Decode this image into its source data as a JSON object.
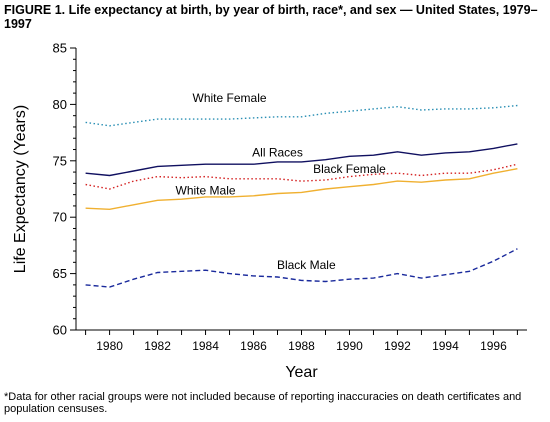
{
  "chart_data": {
    "type": "line",
    "title": "FIGURE 1. Life expectancy at birth, by year of birth, race*, and sex — United States, 1979–1997",
    "xlabel": "Year",
    "ylabel": "Life Expectancy (Years)",
    "xlim": [
      1979,
      1997
    ],
    "ylim": [
      60,
      85
    ],
    "x_ticks": [
      1980,
      1982,
      1984,
      1986,
      1988,
      1990,
      1992,
      1994,
      1996
    ],
    "y_ticks": [
      60,
      65,
      70,
      75,
      80,
      85
    ],
    "grid": false,
    "legend": "inline labels",
    "x": [
      1979,
      1980,
      1981,
      1982,
      1983,
      1984,
      1985,
      1986,
      1987,
      1988,
      1989,
      1990,
      1991,
      1992,
      1993,
      1994,
      1995,
      1996,
      1997
    ],
    "series": [
      {
        "name": "White Female",
        "color": "#2a8fb4",
        "dash": "1.5 2.5",
        "values": [
          78.4,
          78.1,
          78.4,
          78.7,
          78.7,
          78.7,
          78.7,
          78.8,
          78.9,
          78.9,
          79.2,
          79.4,
          79.6,
          79.8,
          79.5,
          79.6,
          79.6,
          79.7,
          79.9
        ]
      },
      {
        "name": "All Races",
        "color": "#101060",
        "dash": "",
        "values": [
          73.9,
          73.7,
          74.1,
          74.5,
          74.6,
          74.7,
          74.7,
          74.7,
          74.9,
          74.9,
          75.1,
          75.4,
          75.5,
          75.8,
          75.5,
          75.7,
          75.8,
          76.1,
          76.5
        ]
      },
      {
        "name": "Black Female",
        "color": "#d42020",
        "dash": "1.5 2.5",
        "values": [
          72.9,
          72.5,
          73.2,
          73.6,
          73.5,
          73.6,
          73.4,
          73.4,
          73.4,
          73.2,
          73.3,
          73.6,
          73.8,
          73.9,
          73.7,
          73.9,
          73.9,
          74.2,
          74.7
        ]
      },
      {
        "name": "White Male",
        "color": "#f0b030",
        "dash": "",
        "values": [
          70.8,
          70.7,
          71.1,
          71.5,
          71.6,
          71.8,
          71.8,
          71.9,
          72.1,
          72.2,
          72.5,
          72.7,
          72.9,
          73.2,
          73.1,
          73.3,
          73.4,
          73.9,
          74.3
        ]
      },
      {
        "name": "Black Male",
        "color": "#1a2a9c",
        "dash": "5 3",
        "values": [
          64.0,
          63.8,
          64.5,
          65.1,
          65.2,
          65.3,
          65.0,
          64.8,
          64.7,
          64.4,
          64.3,
          64.5,
          64.6,
          65.0,
          64.6,
          64.9,
          65.2,
          66.1,
          67.2
        ]
      }
    ],
    "labels": [
      {
        "series": "White Female",
        "text": "White Female",
        "x": 1985.0,
        "y": 80.2
      },
      {
        "series": "All Races",
        "text": "All Races",
        "x": 1987.0,
        "y": 75.4
      },
      {
        "series": "Black Female",
        "text": "Black Female",
        "x": 1990.0,
        "y": 73.9
      },
      {
        "series": "White Male",
        "text": "White Male",
        "x": 1984.0,
        "y": 72.0
      },
      {
        "series": "Black Male",
        "text": "Black Male",
        "x": 1988.2,
        "y": 65.4
      }
    ]
  },
  "footnote": "*Data for other racial groups were not included because of reporting inaccuracies on death certificates and population censuses."
}
